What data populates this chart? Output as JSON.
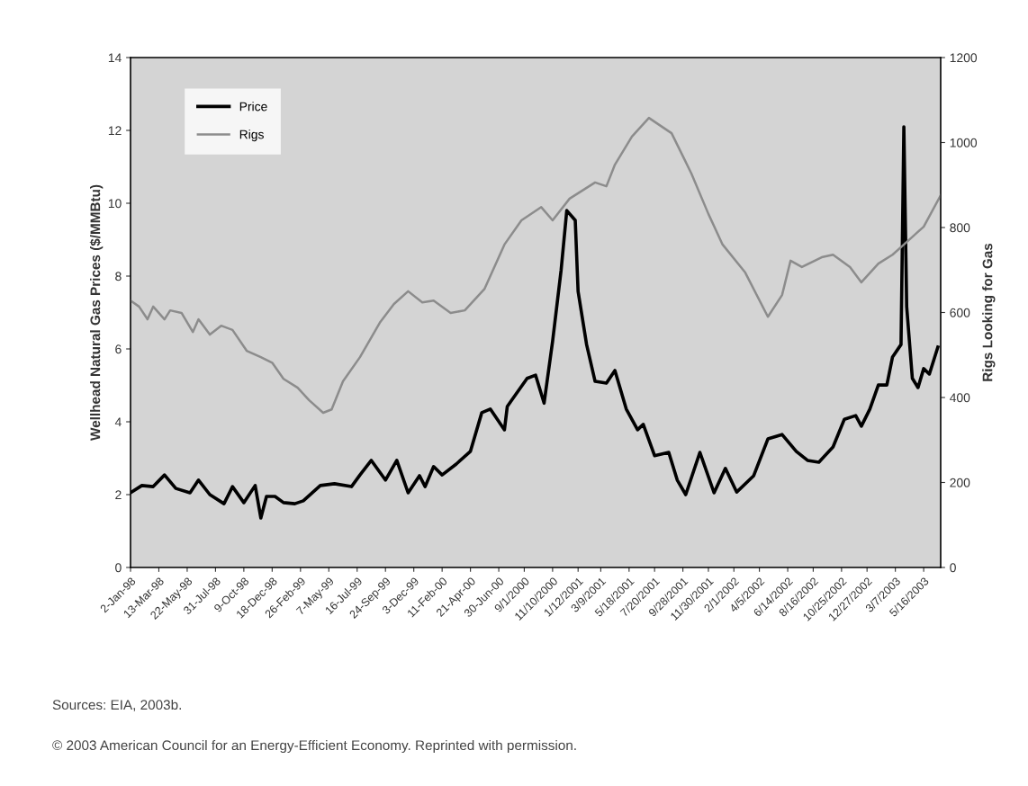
{
  "chart_data": {
    "type": "line",
    "xlabel": null,
    "ylabel": "Wellhead Natural Gas Prices ($/MMBtu)",
    "y2label": "Rigs Looking for Gas",
    "xlim": [
      "1998-01-02",
      "2003-06-27"
    ],
    "xticks": [
      {
        "value": "1998-01-02",
        "label": "2-Jan-98"
      },
      {
        "value": "1998-03-13",
        "label": "13-Mar-98"
      },
      {
        "value": "1998-05-22",
        "label": "22-May-98"
      },
      {
        "value": "1998-07-31",
        "label": "31-Jul-98"
      },
      {
        "value": "1998-10-09",
        "label": "9-Oct-98"
      },
      {
        "value": "1998-12-18",
        "label": "18-Dec-98"
      },
      {
        "value": "1999-02-26",
        "label": "26-Feb-99"
      },
      {
        "value": "1999-05-07",
        "label": "7-May-99"
      },
      {
        "value": "1999-07-16",
        "label": "16-Jul-99"
      },
      {
        "value": "1999-09-24",
        "label": "24-Sep-99"
      },
      {
        "value": "1999-12-03",
        "label": "3-Dec-99"
      },
      {
        "value": "2000-02-11",
        "label": "11-Feb-00"
      },
      {
        "value": "2000-04-21",
        "label": "21-Apr-00"
      },
      {
        "value": "2000-06-30",
        "label": "30-Jun-00"
      },
      {
        "value": "2000-09-01",
        "label": "9/1/2000"
      },
      {
        "value": "2000-11-10",
        "label": "11/10/2000"
      },
      {
        "value": "2001-01-12",
        "label": "1/12/2001"
      },
      {
        "value": "2001-03-09",
        "label": "3/9/2001"
      },
      {
        "value": "2001-05-18",
        "label": "5/18/2001"
      },
      {
        "value": "2001-07-20",
        "label": "7/20/2001"
      },
      {
        "value": "2001-09-28",
        "label": "9/28/2001"
      },
      {
        "value": "2001-11-30",
        "label": "11/30/2001"
      },
      {
        "value": "2002-02-01",
        "label": "2/1/2002"
      },
      {
        "value": "2002-04-05",
        "label": "4/5/2002"
      },
      {
        "value": "2002-06-14",
        "label": "6/14/2002"
      },
      {
        "value": "2002-08-16",
        "label": "8/16/2002"
      },
      {
        "value": "2002-10-25",
        "label": "10/25/2002"
      },
      {
        "value": "2002-12-27",
        "label": "12/27/2002"
      },
      {
        "value": "2003-03-07",
        "label": "3/7/2003"
      },
      {
        "value": "2003-05-16",
        "label": "5/16/2003"
      }
    ],
    "ylim": [
      0,
      14
    ],
    "yticks": [
      0,
      2,
      4,
      6,
      8,
      10,
      12,
      14
    ],
    "y2lim": [
      0,
      1200
    ],
    "y2ticks": [
      0,
      200,
      400,
      600,
      800,
      1000,
      1200
    ],
    "grid": false,
    "legend": "top left",
    "marker": "none",
    "line_style": "solid",
    "series": [
      {
        "name": "Price",
        "color": "#000000",
        "x": [
          "1998-01-02",
          "1998-01-30",
          "1998-02-27",
          "1998-03-27",
          "1998-04-24",
          "1998-05-29",
          "1998-06-19",
          "1998-07-17",
          "1998-08-21",
          "1998-09-11",
          "1998-10-09",
          "1998-11-06",
          "1998-11-20",
          "1998-12-04",
          "1998-12-25",
          "1999-01-15",
          "1999-02-12",
          "1999-03-05",
          "1999-04-16",
          "1999-05-21",
          "1999-07-02",
          "1999-07-23",
          "1999-08-20",
          "1999-09-24",
          "1999-10-22",
          "1999-11-19",
          "1999-12-17",
          "1999-12-31",
          "2000-01-21",
          "2000-02-11",
          "2000-03-17",
          "2000-04-21",
          "2000-05-19",
          "2000-06-09",
          "2000-07-14",
          "2000-07-21",
          "2000-08-04",
          "2000-09-08",
          "2000-09-29",
          "2000-10-20",
          "2000-11-10",
          "2000-12-01",
          "2000-12-15",
          "2001-01-05",
          "2001-01-12",
          "2001-02-02",
          "2001-02-23",
          "2001-03-23",
          "2001-04-13",
          "2001-05-11",
          "2001-06-08",
          "2001-06-22",
          "2001-07-20",
          "2001-08-24",
          "2001-09-14",
          "2001-10-05",
          "2001-11-09",
          "2001-12-14",
          "2002-01-11",
          "2002-02-08",
          "2002-03-22",
          "2002-04-26",
          "2002-05-31",
          "2002-07-05",
          "2002-08-02",
          "2002-08-30",
          "2002-10-04",
          "2002-11-01",
          "2002-11-29",
          "2002-12-13",
          "2003-01-03",
          "2003-01-24",
          "2003-02-14",
          "2003-02-28",
          "2003-03-21",
          "2003-03-28",
          "2003-04-04",
          "2003-04-18",
          "2003-05-02",
          "2003-05-16",
          "2003-05-30",
          "2003-06-20"
        ],
        "values": [
          2.05,
          2.25,
          2.22,
          2.54,
          2.17,
          2.05,
          2.4,
          2.0,
          1.75,
          2.22,
          1.78,
          2.25,
          1.36,
          1.95,
          1.95,
          1.78,
          1.75,
          1.83,
          2.25,
          2.3,
          2.22,
          2.54,
          2.94,
          2.4,
          2.94,
          2.05,
          2.52,
          2.22,
          2.77,
          2.54,
          2.84,
          3.19,
          4.25,
          4.35,
          3.78,
          4.42,
          4.64,
          5.19,
          5.28,
          4.51,
          6.21,
          8.16,
          9.8,
          9.53,
          7.58,
          6.12,
          5.11,
          5.06,
          5.41,
          4.35,
          3.78,
          3.93,
          3.07,
          3.16,
          2.4,
          2.0,
          3.16,
          2.05,
          2.72,
          2.07,
          2.52,
          3.53,
          3.65,
          3.19,
          2.94,
          2.89,
          3.31,
          4.07,
          4.17,
          3.88,
          4.35,
          5.01,
          5.01,
          5.78,
          6.12,
          12.1,
          7.16,
          5.19,
          4.94,
          5.46,
          5.31,
          6.05
        ]
      },
      {
        "name": "Rigs",
        "color": "#8c8c8c",
        "axis": "y2",
        "x": [
          "1998-01-02",
          "1998-01-23",
          "1998-02-13",
          "1998-02-27",
          "1998-03-27",
          "1998-04-10",
          "1998-05-08",
          "1998-06-05",
          "1998-06-19",
          "1998-07-17",
          "1998-08-14",
          "1998-09-11",
          "1998-10-16",
          "1998-11-20",
          "1998-12-18",
          "1999-01-15",
          "1999-02-19",
          "1999-03-19",
          "1999-04-23",
          "1999-05-14",
          "1999-06-11",
          "1999-07-23",
          "1999-09-10",
          "1999-10-15",
          "1999-11-19",
          "1999-12-24",
          "2000-01-21",
          "2000-03-03",
          "2000-04-07",
          "2000-05-26",
          "2000-07-14",
          "2000-08-25",
          "2000-10-13",
          "2000-11-10",
          "2000-12-22",
          "2001-02-23",
          "2001-03-23",
          "2001-04-13",
          "2001-05-25",
          "2001-07-06",
          "2001-08-31",
          "2001-10-19",
          "2001-11-30",
          "2002-01-04",
          "2002-03-01",
          "2002-04-26",
          "2002-05-31",
          "2002-06-21",
          "2002-07-19",
          "2002-09-06",
          "2002-10-04",
          "2002-11-15",
          "2002-12-13",
          "2003-01-24",
          "2003-02-28",
          "2003-04-04",
          "2003-05-16",
          "2003-06-27"
        ],
        "values": [
          628,
          614,
          584,
          614,
          584,
          605,
          599,
          554,
          584,
          548,
          569,
          559,
          510,
          495,
          482,
          444,
          423,
          394,
          364,
          372,
          438,
          495,
          576,
          620,
          650,
          624,
          628,
          599,
          605,
          656,
          760,
          817,
          848,
          817,
          868,
          906,
          897,
          948,
          1014,
          1058,
          1022,
          927,
          832,
          760,
          694,
          590,
          641,
          722,
          707,
          730,
          736,
          707,
          671,
          715,
          736,
          766,
          802,
          876
        ]
      }
    ],
    "annotations": [
      "Sources: EIA, 2003b.",
      "© 2003 American Council for an Energy-Efficient Economy. Reprinted with permission."
    ]
  }
}
